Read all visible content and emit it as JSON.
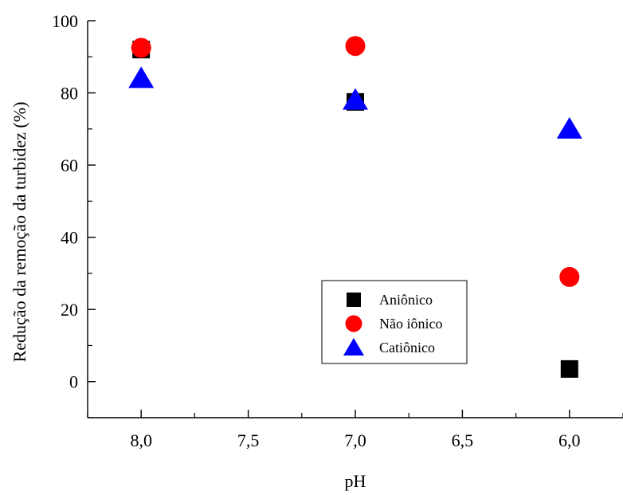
{
  "chart_data": {
    "type": "scatter",
    "xlabel": "pH",
    "ylabel": "Redução da remoção da turbidez (%)",
    "x_reversed": true,
    "xlim": [
      8.25,
      5.75
    ],
    "ylim": [
      -10,
      100
    ],
    "x_ticks": [
      {
        "value": 8.0,
        "label": "8,0"
      },
      {
        "value": 7.5,
        "label": "7,5"
      },
      {
        "value": 7.0,
        "label": "7,0"
      },
      {
        "value": 6.5,
        "label": "6,5"
      },
      {
        "value": 6.0,
        "label": "6,0"
      }
    ],
    "y_ticks": [
      {
        "value": 0,
        "label": "0"
      },
      {
        "value": 20,
        "label": "20"
      },
      {
        "value": 40,
        "label": "40"
      },
      {
        "value": 60,
        "label": "60"
      },
      {
        "value": 80,
        "label": "80"
      },
      {
        "value": 100,
        "label": "100"
      }
    ],
    "grid": false,
    "legend_position": "center-right",
    "series": [
      {
        "name": "Aniônico",
        "marker": "square",
        "color": "#000000",
        "x": [
          8.0,
          7.0,
          6.0
        ],
        "y": [
          92,
          77.5,
          3.5
        ]
      },
      {
        "name": "Não iônico",
        "marker": "circle",
        "color": "#ff0000",
        "x": [
          8.0,
          7.0,
          6.0
        ],
        "y": [
          92.5,
          93,
          29
        ]
      },
      {
        "name": "Catiônico",
        "marker": "triangle",
        "color": "#0000ff",
        "x": [
          8.0,
          7.0,
          6.0
        ],
        "y": [
          84,
          78,
          70
        ]
      }
    ]
  }
}
